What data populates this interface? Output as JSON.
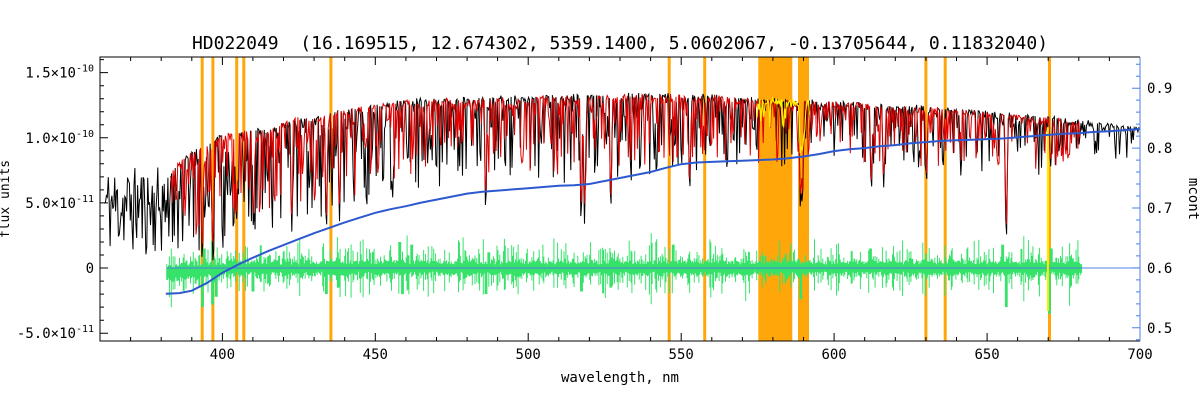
{
  "chart_data": {
    "type": "line",
    "title": "HD022049  (16.169515, 12.674302, 5359.1400, 5.0602067, -0.13705644, 0.11832040)",
    "xlabel": "wavelength, nm",
    "ylabel_left": "flux units",
    "ylabel_right": "mcont",
    "flux_scale": 1e-10,
    "axes": {
      "xlim": [
        360,
        700
      ],
      "ylim_left": [
        -5.6e-11,
        1.62e-10
      ],
      "ylim_right": [
        0.478,
        0.952
      ],
      "xticks": [
        400,
        450,
        500,
        550,
        600,
        650,
        700
      ],
      "x_minor_step": 10,
      "yticks_left": [
        {
          "value": -5e-11,
          "base": "-5.0×10",
          "exp": "-11"
        },
        {
          "value": 0,
          "base": "0",
          "exp": ""
        },
        {
          "value": 5e-11,
          "base": "5.0×10",
          "exp": "-11"
        },
        {
          "value": 1e-10,
          "base": "1.0×10",
          "exp": "-10"
        },
        {
          "value": 1.5e-10,
          "base": "1.5×10",
          "exp": "-10"
        }
      ],
      "y_left_minor_step": 1e-11,
      "yticks_right": [
        {
          "value": 0.5,
          "label": "0.5"
        },
        {
          "value": 0.6,
          "label": "0.6"
        },
        {
          "value": 0.7,
          "label": "0.7"
        },
        {
          "value": 0.8,
          "label": "0.8"
        },
        {
          "value": 0.9,
          "label": "0.9"
        }
      ],
      "y_right_minor_step": 0.02,
      "grid": false,
      "legend": false
    },
    "colors": {
      "frame": "#000000",
      "observed": "#000000",
      "model": "#dd0000",
      "masked_spectrum": "#ffee00",
      "residual": "#37e26b",
      "continuum_fit": "#2d59cf",
      "right_axis": "#4f7fe3",
      "mask_band": "#ffa60a"
    },
    "mask_lines_nm": [
      393.4,
      396.9,
      404.7,
      407.0,
      435.5,
      546.1,
      557.7,
      630.0,
      636.3,
      670.4
    ],
    "mask_bands_nm": [
      [
        575.2,
        586.3
      ],
      [
        588.2,
        591.8
      ]
    ],
    "series": {
      "observed": {
        "name": "observed spectrum",
        "color_key": "observed",
        "x_range": [
          361.5,
          700
        ],
        "noisy_head_range": [
          361.5,
          382.8
        ],
        "continuum_1e10": [
          [
            362,
            0.55
          ],
          [
            368,
            0.52
          ],
          [
            374,
            0.56
          ],
          [
            380,
            0.62
          ],
          [
            383,
            0.74
          ],
          [
            386,
            0.82
          ],
          [
            390,
            0.9
          ],
          [
            395,
            0.95
          ],
          [
            400,
            1.03
          ],
          [
            405,
            1.04
          ],
          [
            410,
            1.07
          ],
          [
            415,
            1.06
          ],
          [
            420,
            1.12
          ],
          [
            425,
            1.16
          ],
          [
            430,
            1.16
          ],
          [
            435,
            1.19
          ],
          [
            440,
            1.22
          ],
          [
            445,
            1.24
          ],
          [
            450,
            1.26
          ],
          [
            460,
            1.29
          ],
          [
            470,
            1.3
          ],
          [
            480,
            1.3
          ],
          [
            490,
            1.31
          ],
          [
            500,
            1.32
          ],
          [
            510,
            1.32
          ],
          [
            520,
            1.33
          ],
          [
            530,
            1.33
          ],
          [
            540,
            1.34
          ],
          [
            550,
            1.33
          ],
          [
            560,
            1.33
          ],
          [
            570,
            1.31
          ],
          [
            580,
            1.3
          ],
          [
            590,
            1.29
          ],
          [
            600,
            1.28
          ],
          [
            610,
            1.27
          ],
          [
            620,
            1.25
          ],
          [
            630,
            1.24
          ],
          [
            640,
            1.22
          ],
          [
            650,
            1.2
          ],
          [
            660,
            1.18
          ],
          [
            670,
            1.16
          ],
          [
            680,
            1.14
          ],
          [
            690,
            1.11
          ],
          [
            700,
            1.08
          ]
        ],
        "line_depth_profile": [
          [
            362,
            0.95
          ],
          [
            383,
            0.88
          ],
          [
            395,
            0.9
          ],
          [
            405,
            0.82
          ],
          [
            415,
            0.78
          ],
          [
            425,
            0.72
          ],
          [
            435,
            0.68
          ],
          [
            445,
            0.62
          ],
          [
            455,
            0.58
          ],
          [
            470,
            0.52
          ],
          [
            490,
            0.5
          ],
          [
            510,
            0.52
          ],
          [
            530,
            0.5
          ],
          [
            550,
            0.46
          ],
          [
            570,
            0.44
          ],
          [
            590,
            0.42
          ],
          [
            610,
            0.42
          ],
          [
            630,
            0.42
          ],
          [
            650,
            0.4
          ],
          [
            665,
            0.42
          ],
          [
            680,
            0.28
          ],
          [
            700,
            0.22
          ]
        ],
        "strong_lines": [
          [
            393.4,
            0.05
          ],
          [
            396.9,
            0.06
          ],
          [
            404.6,
            0.35
          ],
          [
            410.2,
            0.3
          ],
          [
            422.7,
            0.28
          ],
          [
            434.0,
            0.3
          ],
          [
            438.3,
            0.36
          ],
          [
            486.1,
            0.45
          ],
          [
            517.3,
            0.36
          ],
          [
            518.4,
            0.34
          ],
          [
            527.0,
            0.46
          ],
          [
            552.8,
            0.6
          ],
          [
            589.0,
            0.44
          ],
          [
            589.6,
            0.48
          ],
          [
            612.2,
            0.6
          ],
          [
            616.2,
            0.62
          ],
          [
            630.2,
            0.66
          ],
          [
            656.3,
            0.22
          ],
          [
            670.8,
            0.78
          ]
        ]
      },
      "model": {
        "name": "model spectrum",
        "color_key": "model",
        "x_range": [
          383,
          680.3
        ],
        "depth_scale": 0.88
      },
      "masked": {
        "name": "masked spectrum segment",
        "color_key": "masked_spectrum",
        "x_ranges": [
          [
            574.8,
            592.0
          ]
        ],
        "depth_scale": 0.5,
        "vlines": [
          {
            "x": 669.9,
            "y1_1e10": -0.33,
            "y2_1e10": 1.08
          }
        ]
      },
      "residual": {
        "name": "residual obs-model",
        "color_key": "residual",
        "x_range": [
          381.8,
          681
        ],
        "center_1e10": 0,
        "base_halfwidth_1e10": 0.045,
        "spike_halfwidth_1e10": 0.16,
        "strong_spikes": [
          [
            393.4,
            -0.3
          ],
          [
            394.2,
            0.15
          ],
          [
            396.9,
            -0.28
          ],
          [
            398.0,
            -0.22
          ],
          [
            410.0,
            -0.18
          ],
          [
            434.0,
            -0.2
          ],
          [
            438.0,
            -0.15
          ],
          [
            458.0,
            0.2
          ],
          [
            459.0,
            -0.2
          ],
          [
            462.0,
            0.18
          ],
          [
            486.1,
            -0.2
          ],
          [
            487.0,
            0.12
          ],
          [
            517.3,
            -0.18
          ],
          [
            527.0,
            -0.15
          ],
          [
            547.5,
            0.18
          ],
          [
            589.2,
            -0.24
          ],
          [
            612.0,
            0.15
          ],
          [
            655.0,
            0.18
          ],
          [
            656.3,
            -0.3
          ],
          [
            670.4,
            -0.35
          ],
          [
            671.0,
            0.15
          ]
        ]
      },
      "zero_line": {
        "name": "residual zero line",
        "color_key": "right_axis",
        "y_1e10": 0,
        "x_range": [
          381.8,
          700
        ]
      },
      "mcont": {
        "name": "matched continuum",
        "color_key": "continuum_fit",
        "points": [
          [
            381.5,
            0.557
          ],
          [
            386,
            0.558
          ],
          [
            390,
            0.562
          ],
          [
            395,
            0.575
          ],
          [
            400,
            0.592
          ],
          [
            405,
            0.605
          ],
          [
            410,
            0.617
          ],
          [
            415,
            0.628
          ],
          [
            420,
            0.638
          ],
          [
            425,
            0.648
          ],
          [
            430,
            0.658
          ],
          [
            435,
            0.667
          ],
          [
            440,
            0.676
          ],
          [
            445,
            0.684
          ],
          [
            450,
            0.692
          ],
          [
            455,
            0.698
          ],
          [
            460,
            0.703
          ],
          [
            465,
            0.709
          ],
          [
            470,
            0.714
          ],
          [
            475,
            0.719
          ],
          [
            480,
            0.724
          ],
          [
            485,
            0.727
          ],
          [
            490,
            0.729
          ],
          [
            495,
            0.731
          ],
          [
            500,
            0.733
          ],
          [
            505,
            0.735
          ],
          [
            510,
            0.737
          ],
          [
            515,
            0.738
          ],
          [
            520,
            0.74
          ],
          [
            525,
            0.745
          ],
          [
            530,
            0.75
          ],
          [
            535,
            0.755
          ],
          [
            540,
            0.76
          ],
          [
            545,
            0.767
          ],
          [
            550,
            0.773
          ],
          [
            555,
            0.776
          ],
          [
            560,
            0.777
          ],
          [
            565,
            0.778
          ],
          [
            570,
            0.779
          ],
          [
            575,
            0.78
          ],
          [
            580,
            0.781
          ],
          [
            585,
            0.783
          ],
          [
            590,
            0.786
          ],
          [
            595,
            0.79
          ],
          [
            600,
            0.795
          ],
          [
            605,
            0.798
          ],
          [
            610,
            0.8
          ],
          [
            615,
            0.803
          ],
          [
            620,
            0.805
          ],
          [
            625,
            0.808
          ],
          [
            630,
            0.81
          ],
          [
            635,
            0.812
          ],
          [
            640,
            0.813
          ],
          [
            645,
            0.814
          ],
          [
            650,
            0.815
          ],
          [
            655,
            0.816
          ],
          [
            660,
            0.818
          ],
          [
            665,
            0.82
          ],
          [
            670,
            0.822
          ],
          [
            675,
            0.824
          ],
          [
            680,
            0.825
          ],
          [
            685,
            0.827
          ],
          [
            690,
            0.828
          ],
          [
            695,
            0.83
          ],
          [
            700,
            0.832
          ]
        ]
      }
    }
  }
}
